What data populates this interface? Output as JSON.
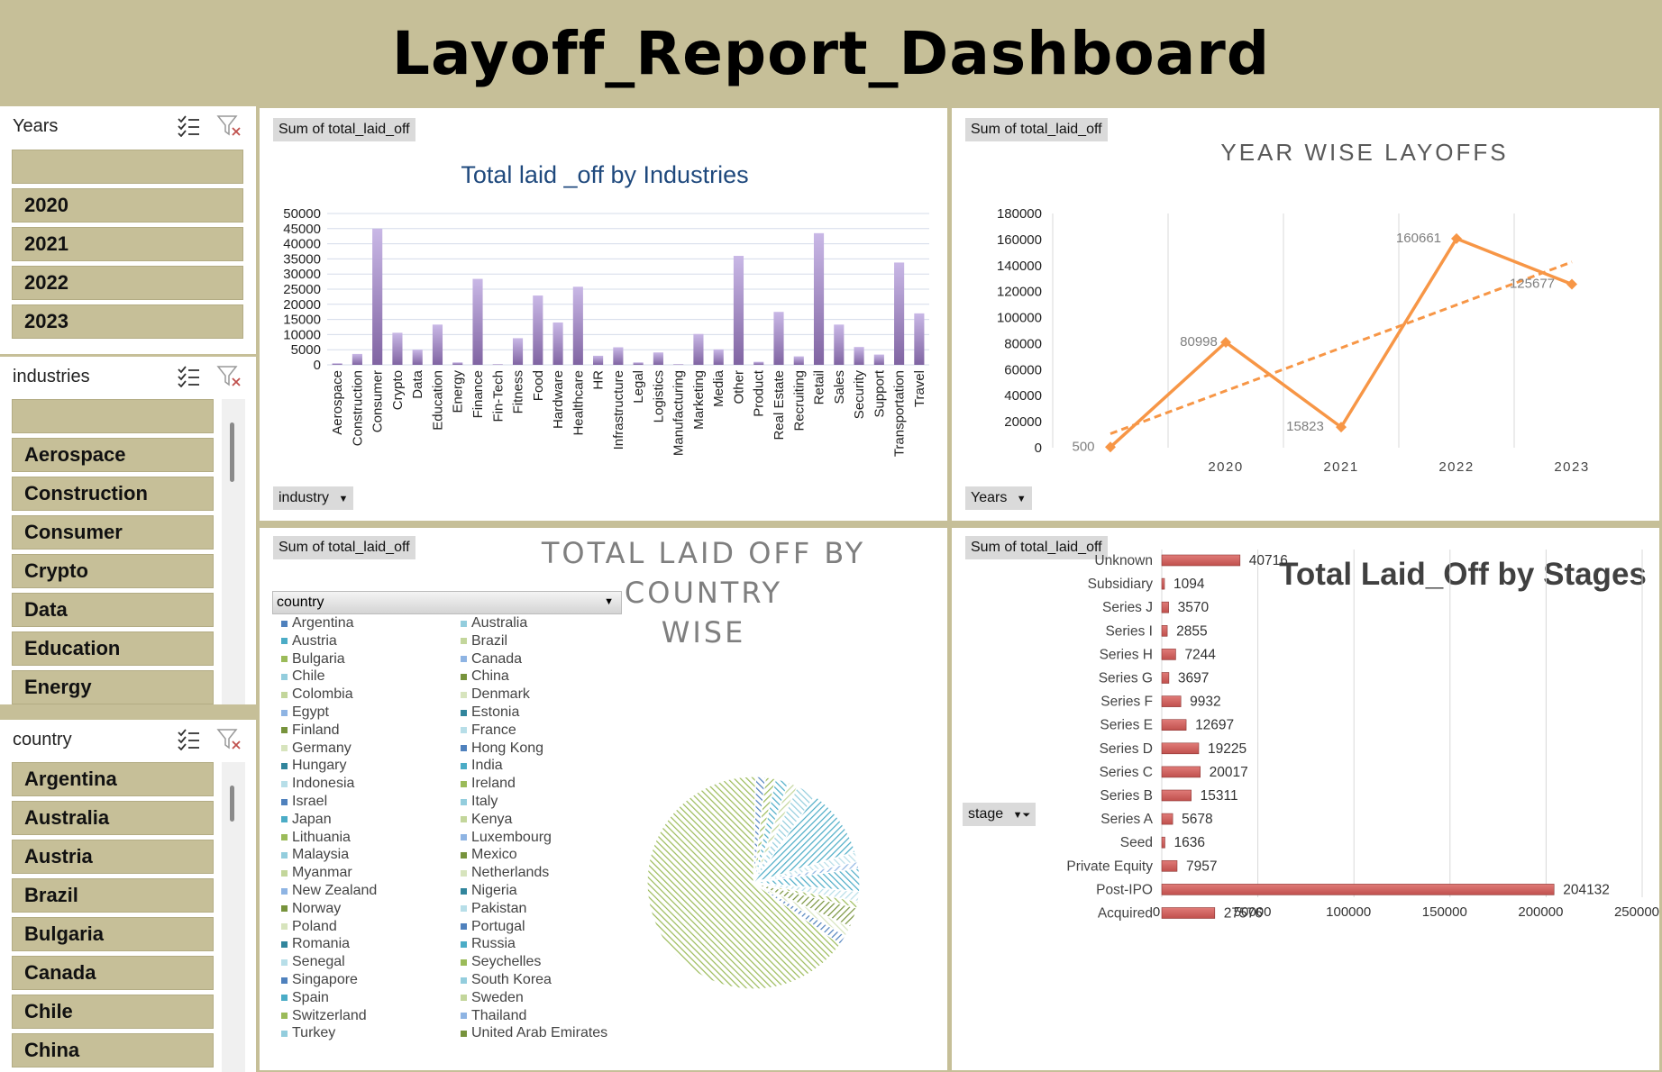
{
  "title": "Layoff_Report_Dashboard",
  "slicers": {
    "years": {
      "header": "Years",
      "items": [
        "",
        "2020",
        "2021",
        "2022",
        "2023"
      ]
    },
    "industries": {
      "header": "industries",
      "items": [
        "",
        "Aerospace",
        "Construction",
        "Consumer",
        "Crypto",
        "Data",
        "Education",
        "Energy"
      ]
    },
    "country": {
      "header": "country",
      "items": [
        "Argentina",
        "Australia",
        "Austria",
        "Brazil",
        "Bulgaria",
        "Canada",
        "Chile",
        "China"
      ]
    }
  },
  "panels": {
    "industries": {
      "field_button": "Sum of total_laid_off",
      "axis_button": "industry"
    },
    "years": {
      "field_button": "Sum of total_laid_off",
      "axis_button": "Years"
    },
    "country": {
      "field_button": "Sum of total_laid_off",
      "filter_button": "country",
      "title_line1": "TOTAL LAID OFF BY COUNTRY",
      "title_line2": "WISE"
    },
    "stages": {
      "field_button": "Sum of total_laid_off",
      "axis_button": "stage"
    }
  },
  "chart_data": [
    {
      "type": "bar",
      "title": "Total laid _off by Industries",
      "categories": [
        "Aerospace",
        "Construction",
        "Consumer",
        "Crypto",
        "Data",
        "Education",
        "Energy",
        "Finance",
        "Fin-Tech",
        "Fitness",
        "Food",
        "Hardware",
        "Healthcare",
        "HR",
        "Infrastructure",
        "Legal",
        "Logistics",
        "Manufacturing",
        "Marketing",
        "Media",
        "Other",
        "Product",
        "Real Estate",
        "Recruiting",
        "Retail",
        "Sales",
        "Security",
        "Support",
        "Transportation",
        "Travel"
      ],
      "values": [
        500,
        3600,
        45000,
        10600,
        5000,
        13300,
        800,
        28400,
        200,
        8800,
        22900,
        14000,
        25800,
        3000,
        5800,
        800,
        4100,
        200,
        10200,
        5100,
        36000,
        1000,
        17500,
        2800,
        43500,
        13300,
        5900,
        3400,
        33800,
        17000
      ],
      "ylim": [
        0,
        50000
      ],
      "yticks": [
        0,
        5000,
        10000,
        15000,
        20000,
        25000,
        30000,
        35000,
        40000,
        45000,
        50000
      ],
      "color": "#8064a2"
    },
    {
      "type": "line",
      "title": "YEAR WISE LAYOFFS",
      "categories": [
        "",
        "2020",
        "2021",
        "2022",
        "2023"
      ],
      "values": [
        500,
        80998,
        15823,
        160661,
        125677
      ],
      "labels": [
        "500",
        "80998",
        "15823",
        "160661",
        "125677"
      ],
      "ylim": [
        0,
        180000
      ],
      "yticks": [
        0,
        20000,
        40000,
        60000,
        80000,
        100000,
        120000,
        140000,
        160000,
        180000
      ],
      "trendline": "linear",
      "color": "#f79646"
    },
    {
      "type": "pie",
      "title": "TOTAL LAID OFF BY COUNTRY WISE",
      "legend_col1": [
        "Argentina",
        "Austria",
        "Bulgaria",
        "Chile",
        "Colombia",
        "Egypt",
        "Finland",
        "Germany",
        "Hungary",
        "Indonesia",
        "Israel",
        "Japan",
        "Lithuania",
        "Malaysia",
        "Myanmar",
        "New Zealand",
        "Norway",
        "Poland",
        "Romania",
        "Senegal",
        "Singapore",
        "Spain",
        "Switzerland",
        "Turkey"
      ],
      "legend_col2": [
        "Australia",
        "Brazil",
        "Canada",
        "China",
        "Denmark",
        "Estonia",
        "France",
        "Hong Kong",
        "India",
        "Ireland",
        "Italy",
        "Kenya",
        "Luxembourg",
        "Mexico",
        "Netherlands",
        "Nigeria",
        "Pakistan",
        "Portugal",
        "Russia",
        "Seychelles",
        "South Korea",
        "Sweden",
        "Thailand",
        "United Arab Emirates"
      ],
      "slices": [
        {
          "value": 1.5,
          "color": "#4f81bd"
        },
        {
          "value": 1.5,
          "color": "#9bbb59"
        },
        {
          "value": 2.0,
          "color": "#4bacc6"
        },
        {
          "value": 1.5,
          "color": "#c3d69b"
        },
        {
          "value": 3.0,
          "color": "#93cddd"
        },
        {
          "value": 10.5,
          "color": "#4bacc6"
        },
        {
          "value": 1.5,
          "color": "#b7dee8"
        },
        {
          "value": 1.0,
          "color": "#8eb4e3"
        },
        {
          "value": 3.5,
          "color": "#4bacc6"
        },
        {
          "value": 1.5,
          "color": "#b7dee8"
        },
        {
          "value": 1.0,
          "color": "#9bbb59"
        },
        {
          "value": 3.0,
          "color": "#77933c"
        },
        {
          "value": 1.5,
          "color": "#d7e4bd"
        },
        {
          "value": 1.5,
          "color": "#4f81bd"
        },
        {
          "value": 65.5,
          "color": "#9bbb59"
        }
      ]
    },
    {
      "type": "bar",
      "orientation": "horizontal",
      "title": "Total Laid_Off by Stages",
      "categories": [
        "Unknown",
        "Subsidiary",
        "Series J",
        "Series I",
        "Series H",
        "Series G",
        "Series F",
        "Series E",
        "Series D",
        "Series C",
        "Series B",
        "Series A",
        "Seed",
        "Private Equity",
        "Post-IPO",
        "Acquired"
      ],
      "values": [
        40716,
        1094,
        3570,
        2855,
        7244,
        3697,
        9932,
        12697,
        19225,
        20017,
        15311,
        5678,
        1636,
        7957,
        204132,
        27576
      ],
      "labels": [
        "40716",
        "1094",
        "3570",
        "2855",
        "7244",
        "3697",
        "9932",
        "12697",
        "19225",
        "20017",
        "15311",
        "5678",
        "1636",
        "7957",
        "204132",
        "27576"
      ],
      "xlim": [
        0,
        250000
      ],
      "xticks": [
        0,
        50000,
        100000,
        150000,
        200000,
        250000
      ],
      "color": "#c0504d"
    }
  ]
}
